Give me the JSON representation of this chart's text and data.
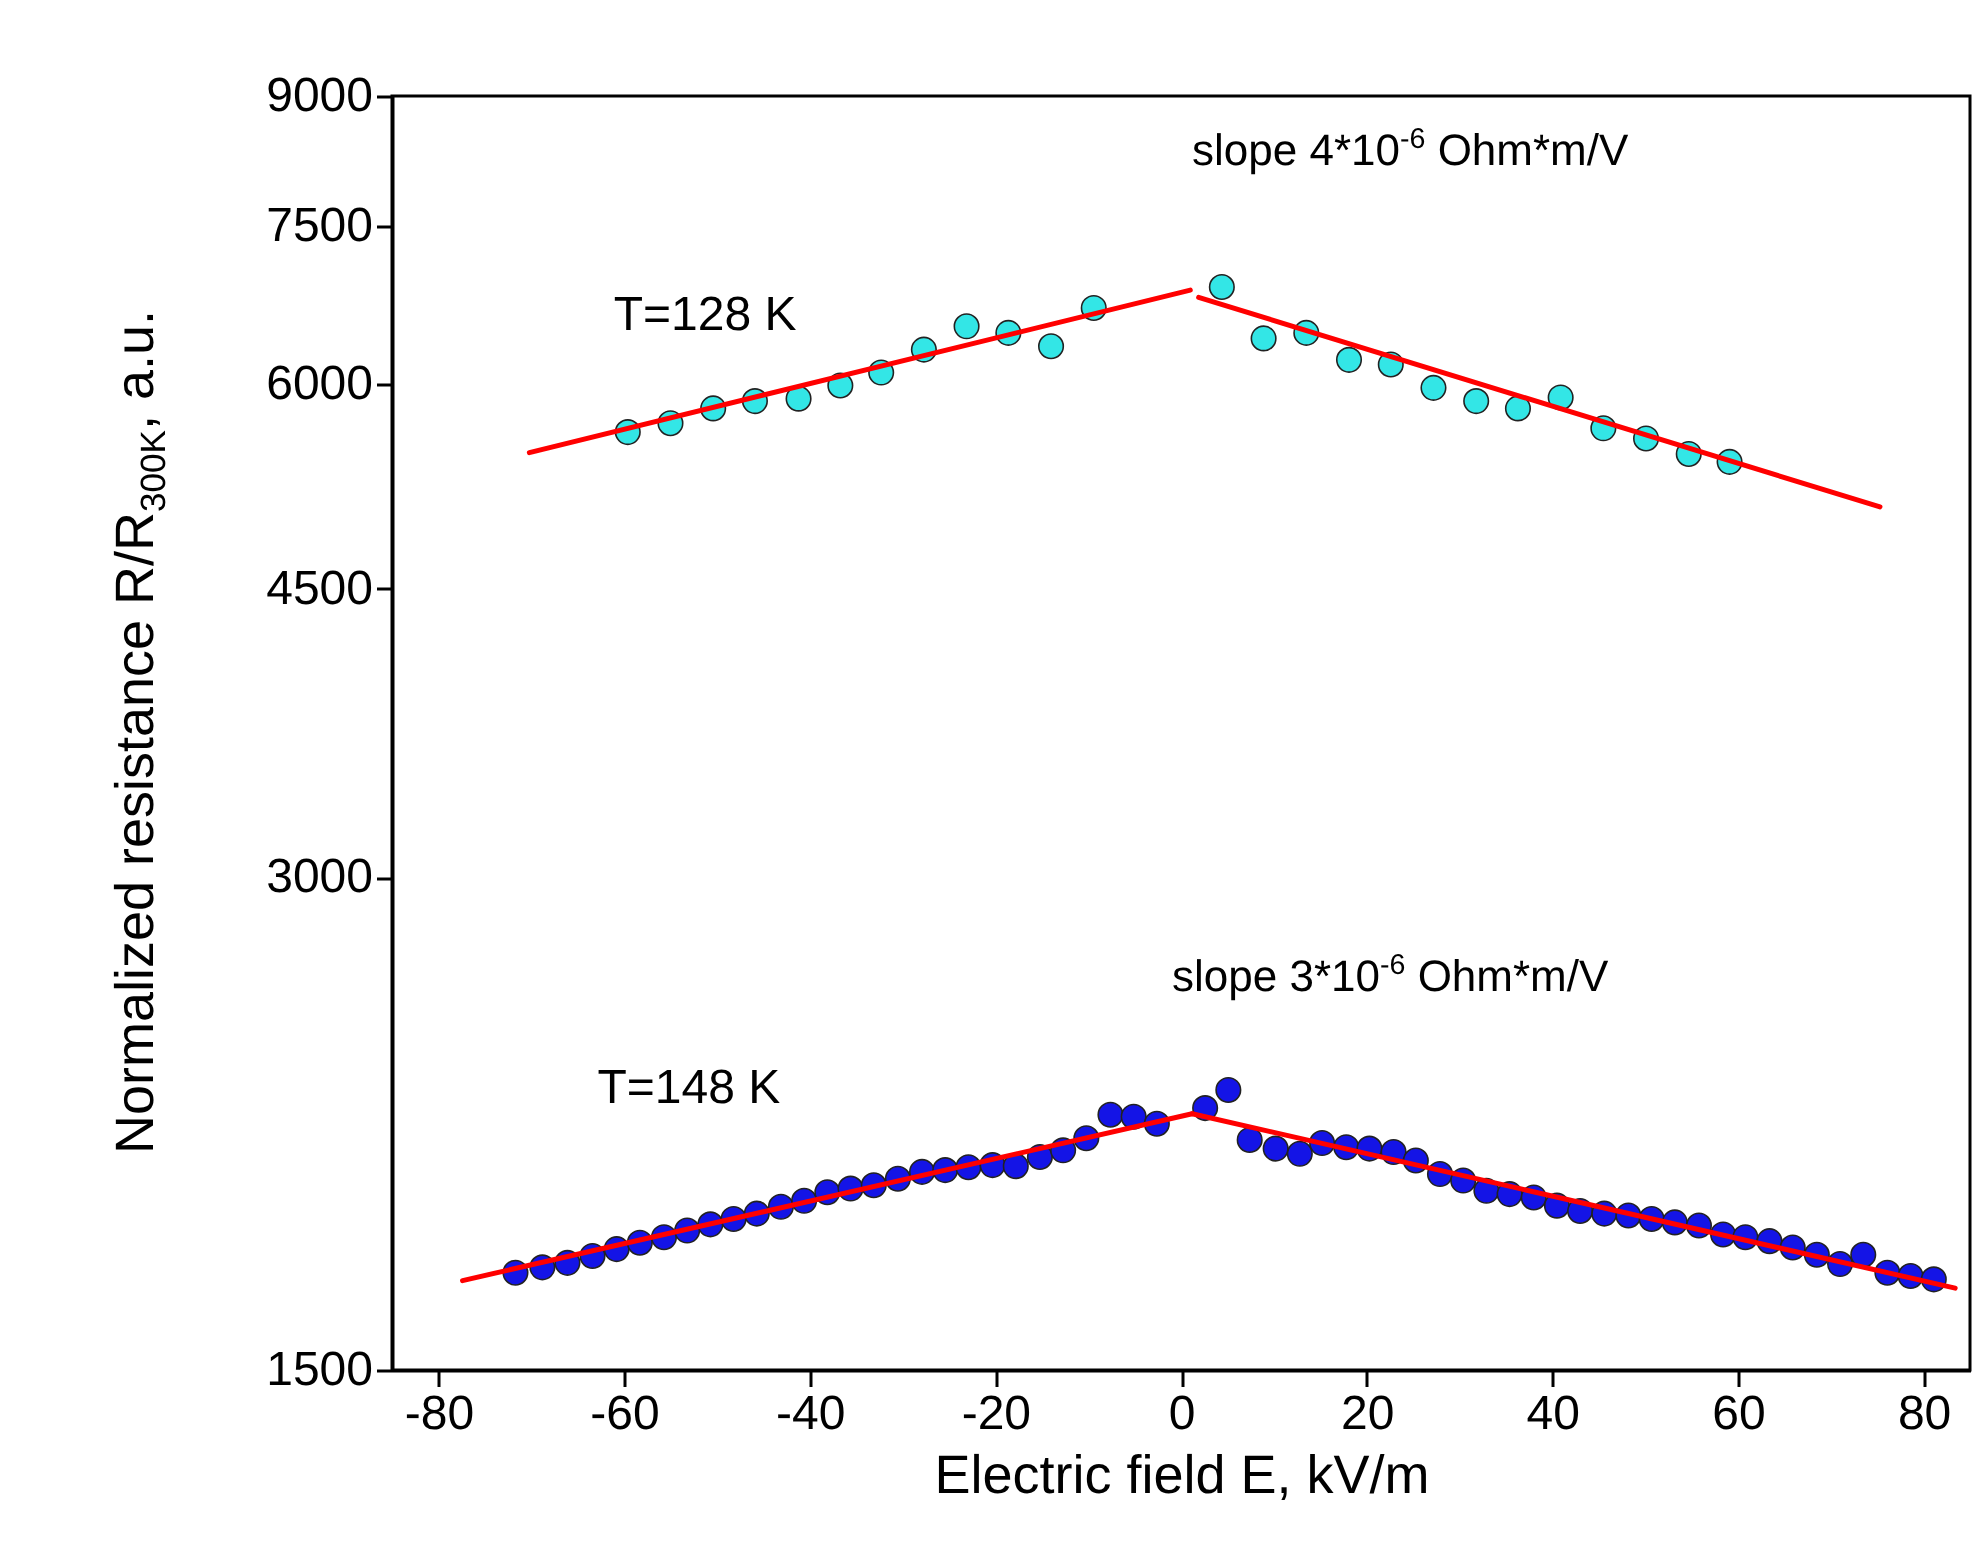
{
  "chart_data": {
    "type": "scatter",
    "xlabel": "Electric field E, kV/m",
    "ylabel": "Normalized resistance  R/R$_{300K}$, a.u.",
    "annotations": [
      "slope 4*10$^{-6}$ Ohm*m/V",
      "slope 3*10$^{-6}$ Ohm*m/V"
    ],
    "xlim": [
      -85,
      85
    ],
    "xticks": [
      -80,
      -60,
      -40,
      -20,
      0,
      20,
      40,
      60,
      80
    ],
    "ylim": [
      1500,
      9000
    ],
    "yticks": [
      1500,
      3000,
      4500,
      6000,
      7500,
      9000
    ],
    "log": "y",
    "grid": false,
    "marker": "circle",
    "series": [
      {
        "name": "T=128 K",
        "color": "#33e6e6",
        "x": [
          -59.6,
          -55,
          -50.4,
          -45.9,
          -41.2,
          -36.7,
          -32.3,
          -27.7,
          -23.1,
          -18.6,
          -14,
          -9.4,
          4.4,
          8.9,
          13.5,
          18.1,
          22.6,
          27.2,
          31.8,
          36.3,
          40.9,
          45.5,
          50.1,
          54.7,
          59.1
        ],
        "values": [
          5610,
          5680,
          5800,
          5860,
          5880,
          5990,
          6100,
          6300,
          6510,
          6450,
          6330,
          6680,
          6880,
          6400,
          6450,
          6210,
          6170,
          5970,
          5860,
          5800,
          5890,
          5640,
          5560,
          5440,
          5380
        ]
      },
      {
        "name": "T=148 K",
        "color": "#1414e6",
        "x": [
          -71.7,
          -68.8,
          -66.1,
          -63.4,
          -60.8,
          -58.3,
          -55.7,
          -53.2,
          -50.7,
          -48.2,
          -45.7,
          -43.1,
          -40.6,
          -38.1,
          -35.6,
          -33.1,
          -30.5,
          -27.9,
          -25.4,
          -22.9,
          -20.3,
          -17.8,
          -15.2,
          -12.7,
          -10.2,
          -7.6,
          -5.1,
          -2.6,
          2.6,
          5.1,
          7.4,
          10.2,
          12.8,
          15.2,
          17.8,
          20.3,
          22.9,
          25.3,
          27.9,
          30.4,
          32.9,
          35.4,
          38,
          40.5,
          43,
          45.6,
          48.2,
          50.7,
          53.2,
          55.8,
          58.4,
          60.8,
          63.4,
          65.9,
          68.5,
          71,
          73.5,
          76.1,
          78.6,
          81.1
        ],
        "values": [
          1720,
          1733,
          1744,
          1761,
          1778,
          1794,
          1808,
          1825,
          1841,
          1855,
          1869,
          1887,
          1903,
          1926,
          1936,
          1945,
          1963,
          1982,
          1987,
          1995,
          2001,
          1998,
          2024,
          2043,
          2078,
          2148,
          2142,
          2121,
          2168,
          2224,
          2073,
          2048,
          2033,
          2064,
          2052,
          2048,
          2038,
          2014,
          1976,
          1958,
          1930,
          1921,
          1912,
          1890,
          1876,
          1869,
          1864,
          1855,
          1846,
          1838,
          1815,
          1808,
          1798,
          1782,
          1764,
          1741,
          1764,
          1720,
          1712,
          1704
        ]
      },
      {
        "type": "line",
        "marker": "none",
        "color": "#ff0000",
        "x": [
          -70.2,
          1
        ],
        "values": [
          5450,
          6850
        ]
      },
      {
        "type": "line",
        "marker": "none",
        "color": "#ff0000",
        "x": [
          1.9,
          75.3
        ],
        "values": [
          6780,
          5050
        ]
      },
      {
        "type": "line",
        "marker": "none",
        "color": "#ff0000",
        "x": [
          -77.4,
          1.2
        ],
        "values": [
          1701,
          2151
        ]
      },
      {
        "type": "line",
        "marker": "none",
        "color": "#ff0000",
        "x": [
          1.2,
          83.4
        ],
        "values": [
          2151,
          1683
        ]
      }
    ]
  }
}
